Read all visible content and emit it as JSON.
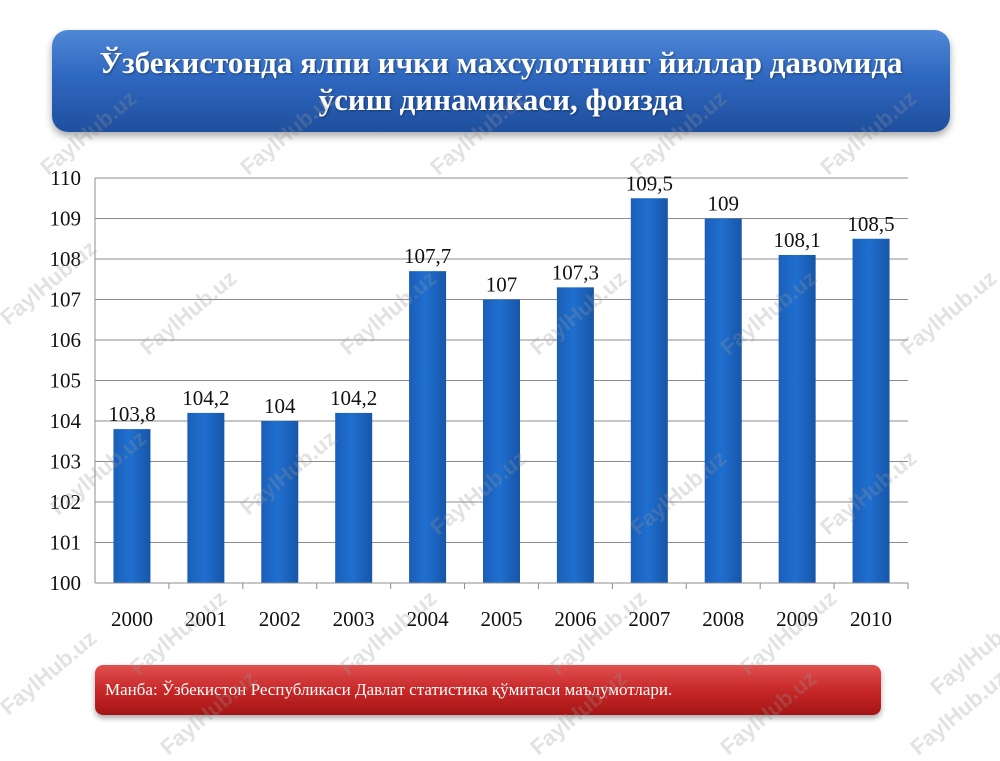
{
  "title": "Ўзбекистонда ялпи ички махсулотнинг йиллар давомида ўсиш динамикаси, фоизда",
  "source": "Манба: Ўзбекистон Республикаси Давлат статистика қўмитаси маълумотлари.",
  "watermark_text": "FaylHub.uz",
  "colors": {
    "bar": "#1f6fd0",
    "title_bg": "#2f68c0",
    "source_bg": "#c82828"
  },
  "chart_data": {
    "type": "bar",
    "categories": [
      "2000",
      "2001",
      "2002",
      "2003",
      "2004",
      "2005",
      "2006",
      "2007",
      "2008",
      "2009",
      "2010"
    ],
    "values": [
      103.8,
      104.2,
      104,
      104.2,
      107.7,
      107,
      107.3,
      109.5,
      109,
      108.1,
      108.5
    ],
    "data_labels": [
      "103,8",
      "104,2",
      "104",
      "104,2",
      "107,7",
      "107",
      "107,3",
      "109,5",
      "109",
      "108,1",
      "108,5"
    ],
    "ylim": [
      100,
      110
    ],
    "yticks": [
      100,
      101,
      102,
      103,
      104,
      105,
      106,
      107,
      108,
      109,
      110
    ],
    "grid": true,
    "title": "",
    "xlabel": "",
    "ylabel": ""
  }
}
